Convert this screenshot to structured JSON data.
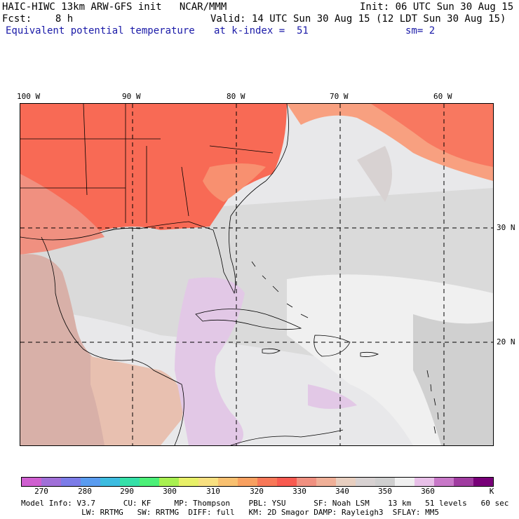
{
  "header": {
    "title": "HAIC-HIWC 13km ARW-GFS init   NCAR/MMM",
    "init": "Init: 06 UTC Sun 30 Aug 15",
    "fcst": "Fcst:    8 h",
    "valid": "Valid: 14 UTC Sun 30 Aug 15 (12 LDT Sun 30 Aug 15)",
    "field": "Equivalent potential temperature",
    "level": "at k-index =  51",
    "smooth": "sm= 2"
  },
  "map": {
    "lon_labels": [
      "100 W",
      "90 W",
      "80 W",
      "70 W",
      "60 W"
    ],
    "lat_labels": [
      "30 N",
      "20 N"
    ]
  },
  "colorbar": {
    "colors": [
      "#cf5fd0",
      "#a070d8",
      "#7c7ce8",
      "#5a9cf0",
      "#3dbce0",
      "#35e0a8",
      "#4cf078",
      "#a8f050",
      "#e8f068",
      "#f8e080",
      "#f8c070",
      "#f8a060",
      "#f87858",
      "#f85a50",
      "#f09080",
      "#f0b098",
      "#e8cfc0",
      "#d8d2d2",
      "#cfcfcf",
      "#f0f0f0",
      "#e8c0e8",
      "#c878c8",
      "#a03ca0",
      "#780078"
    ],
    "ticks": [
      "270",
      "280",
      "290",
      "300",
      "310",
      "320",
      "330",
      "340",
      "350",
      "360",
      "K"
    ]
  },
  "info": {
    "line1": "Model Info: V3.7      CU: KF     MP: Thompson    PBL: YSU      SF: Noah LSM    13 km   51 levels   60 sec",
    "line2": "             LW: RRTMG   SW: RRTMG  DIFF: full   KM: 2D Smagor DAMP: Rayleigh3  SFLAY: MM5"
  }
}
